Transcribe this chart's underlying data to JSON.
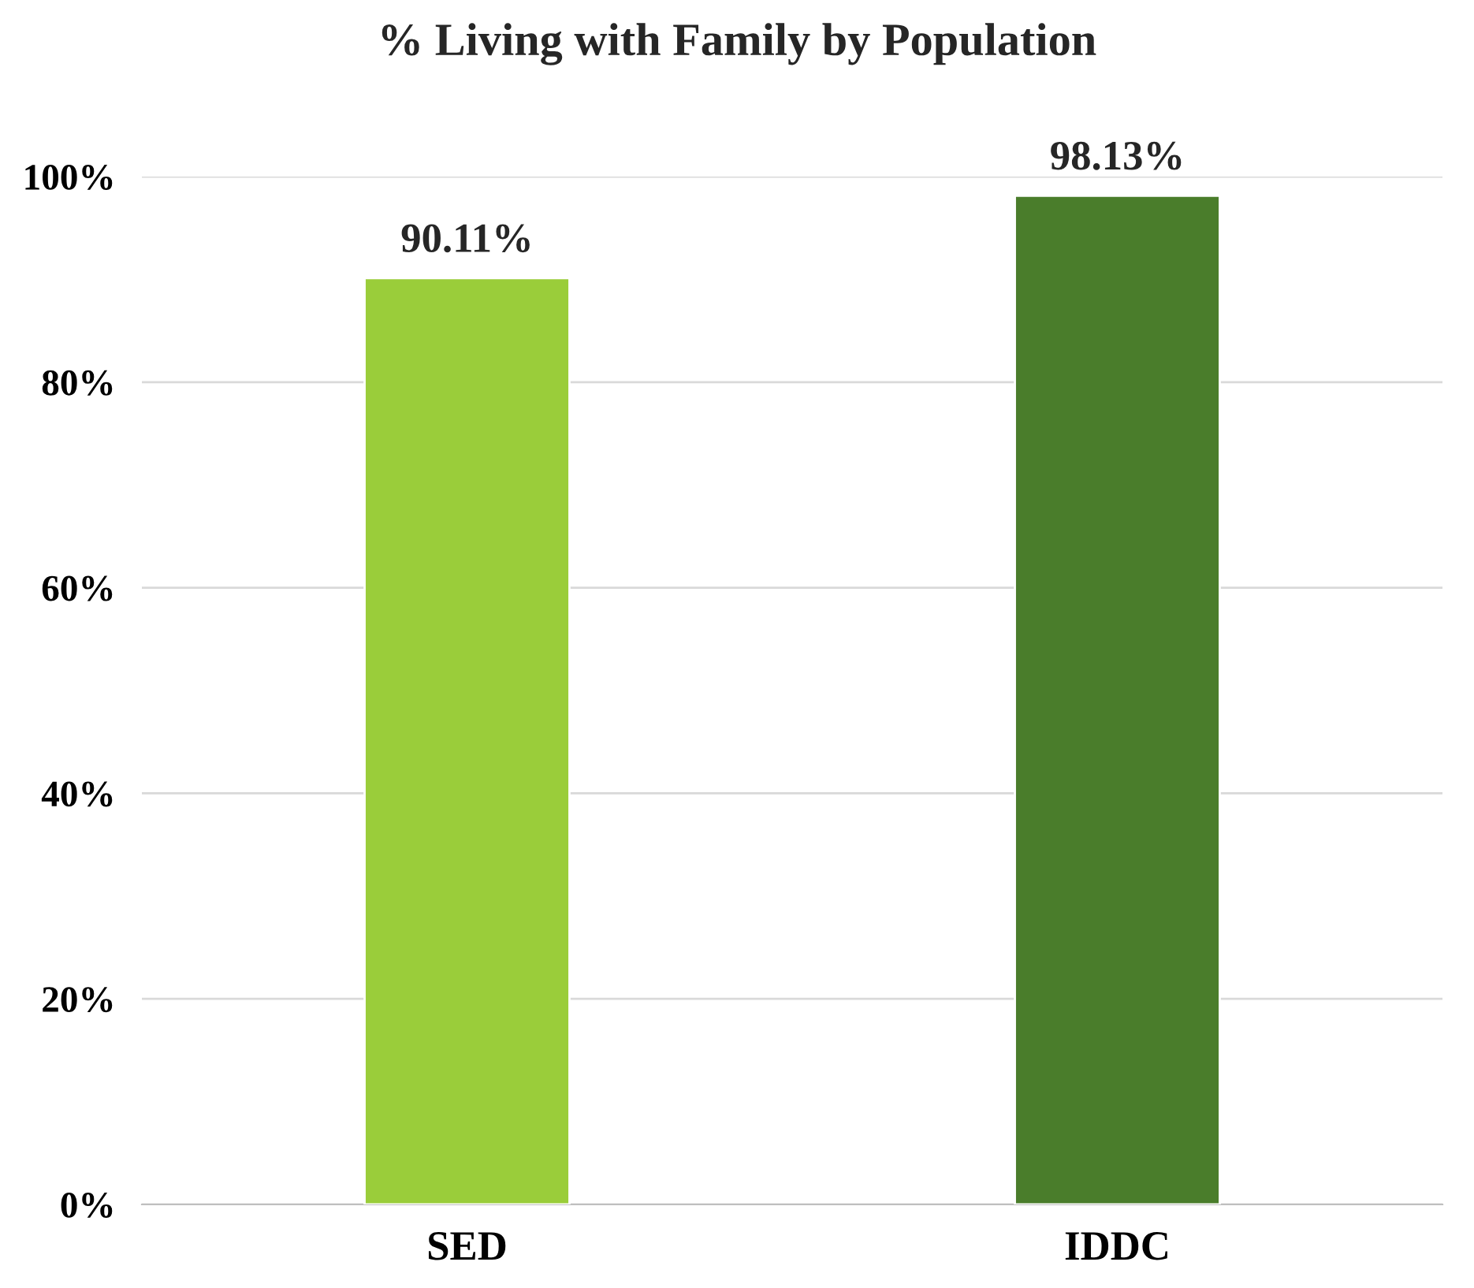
{
  "chart_data": {
    "type": "bar",
    "title": "% Living with Family by Population",
    "categories": [
      "SED",
      "IDDC"
    ],
    "values": [
      90.11,
      98.13
    ],
    "colors": [
      "#9acd3a",
      "#4a7d2b"
    ],
    "value_labels": [
      "90.11%",
      "98.13%"
    ],
    "ylim": [
      0,
      100
    ],
    "yticks": [
      {
        "value": 0,
        "label": "0%"
      },
      {
        "value": 20,
        "label": "20%"
      },
      {
        "value": 40,
        "label": "40%"
      },
      {
        "value": 60,
        "label": "60%"
      },
      {
        "value": 80,
        "label": "80%"
      },
      {
        "value": 100,
        "label": "100%"
      }
    ],
    "grid": "y",
    "legend": false
  }
}
